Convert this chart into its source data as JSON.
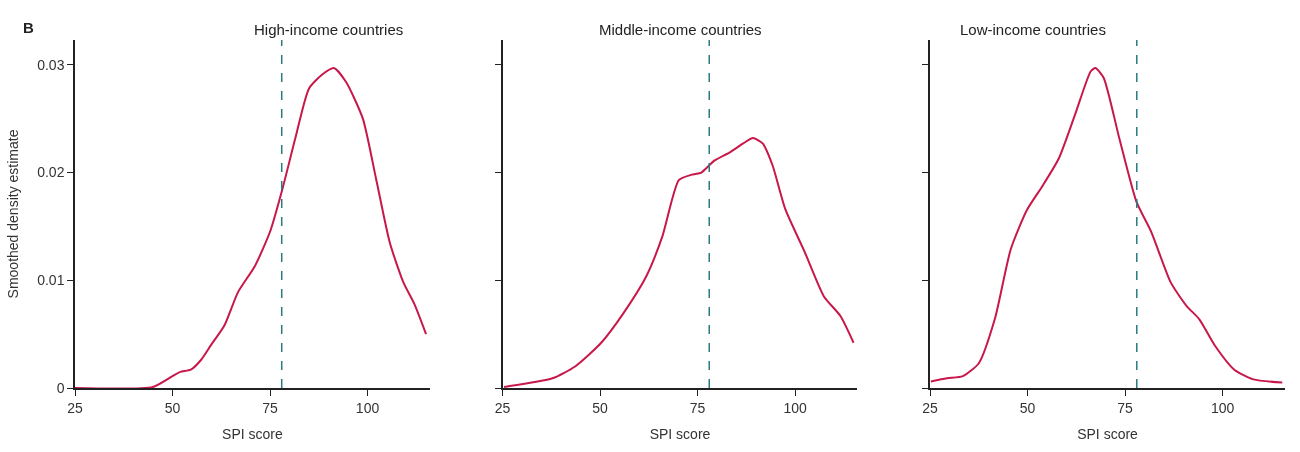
{
  "chart_data": [
    {
      "type": "line",
      "title": "High-income countries",
      "xlabel": "SPI score",
      "ylabel": "Smoothed density estimate",
      "annotations": [
        "B"
      ],
      "series": [
        {
          "color": "#c8184a",
          "x": [
            25,
            45,
            50,
            52,
            54.7,
            57.3,
            59.9,
            63.3,
            66.8,
            71.1,
            75,
            78.2,
            81.5,
            85,
            88.4,
            91.4,
            94.5,
            98.8,
            102.2,
            105.7,
            109.2,
            112,
            115
          ],
          "values": [
            0,
            0.0001,
            0.0011,
            0.0015,
            0.0017,
            0.0026,
            0.004,
            0.0058,
            0.0089,
            0.0113,
            0.0145,
            0.0185,
            0.0232,
            0.0278,
            0.0291,
            0.0297,
            0.0284,
            0.025,
            0.0194,
            0.0135,
            0.0098,
            0.0078,
            0.005
          ]
        }
      ],
      "xlim": [
        25,
        116
      ],
      "ylim": [
        0,
        0.0323
      ],
      "xticks": [
        25,
        50,
        75,
        100
      ],
      "yticks": [
        0,
        0.01,
        0.02,
        0.03
      ],
      "ref_lines": [
        {
          "axis": "x",
          "value": 78,
          "color": "#2a7a80",
          "line_style": "dashed"
        }
      ],
      "marker": "none",
      "line_style": "solid"
    },
    {
      "type": "line",
      "title": "Middle-income countries",
      "xlabel": "SPI score",
      "series": [
        {
          "color": "#c8184a",
          "x": [
            25.4,
            37.8,
            43.6,
            50.3,
            56.1,
            61.9,
            66,
            70.2,
            73.5,
            76,
            79.3,
            83.4,
            86.7,
            89.2,
            91.7,
            94.2,
            97.5,
            102.5,
            107.4,
            111.6,
            115
          ],
          "values": [
            0.0001,
            0.0009,
            0.002,
            0.0042,
            0.007,
            0.0104,
            0.0141,
            0.0193,
            0.0198,
            0.02,
            0.0211,
            0.0219,
            0.0227,
            0.0232,
            0.0227,
            0.0207,
            0.0166,
            0.0126,
            0.0085,
            0.0067,
            0.0042
          ]
        }
      ],
      "xlim": [
        25,
        116
      ],
      "ylim": [
        0,
        0.0323
      ],
      "xticks": [
        25,
        50,
        75,
        100
      ],
      "yticks": [
        0,
        0.01,
        0.02,
        0.03
      ],
      "tick_labels": "x",
      "ref_lines": [
        {
          "axis": "x",
          "value": 78,
          "color": "#2a7a80",
          "line_style": "dashed"
        }
      ],
      "marker": "none",
      "line_style": "solid"
    },
    {
      "type": "line",
      "title": "Low-income countries",
      "xlabel": "SPI score",
      "series": [
        {
          "color": "#c8184a",
          "x": [
            25.2,
            29.3,
            33.4,
            37.5,
            41.6,
            45.7,
            49.8,
            53.9,
            58,
            62.1,
            66.2,
            67.4,
            69.5,
            73.5,
            77.9,
            81.7,
            86.7,
            90.8,
            94,
            98.1,
            103,
            107.9,
            115.3
          ],
          "values": [
            0.0006,
            0.0009,
            0.0011,
            0.0023,
            0.0064,
            0.0129,
            0.0165,
            0.0188,
            0.0213,
            0.0253,
            0.0294,
            0.0297,
            0.0288,
            0.0232,
            0.0173,
            0.0145,
            0.0098,
            0.0076,
            0.0064,
            0.0039,
            0.0017,
            0.0008,
            0.0005
          ]
        }
      ],
      "xlim": [
        25,
        116
      ],
      "ylim": [
        0,
        0.0323
      ],
      "xticks": [
        25,
        50,
        75,
        100
      ],
      "yticks": [
        0,
        0.01,
        0.02,
        0.03
      ],
      "tick_labels": "x",
      "ref_lines": [
        {
          "axis": "x",
          "value": 78,
          "color": "#2a7a80",
          "line_style": "dashed"
        }
      ],
      "marker": "none",
      "line_style": "solid"
    }
  ]
}
